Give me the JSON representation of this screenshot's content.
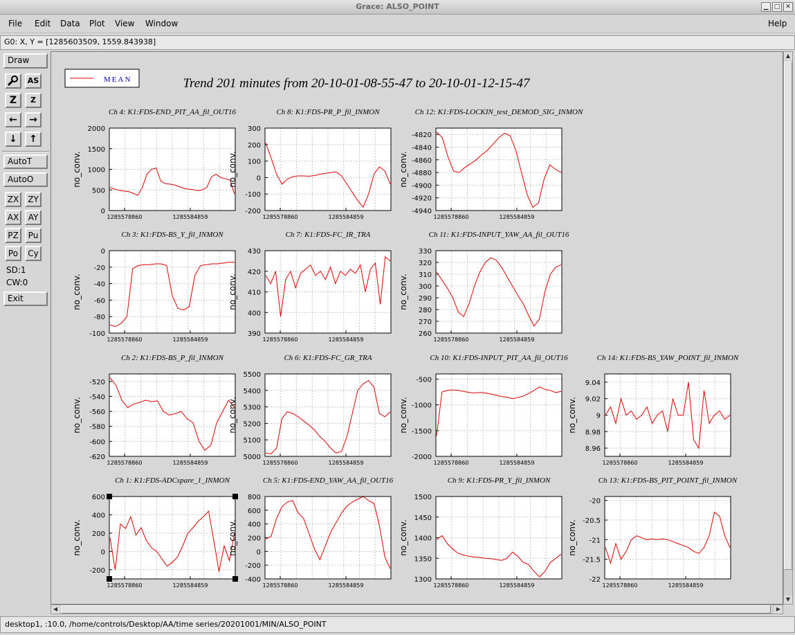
{
  "window": {
    "title": "Grace: ALSO_POINT",
    "controls": [
      "minimize",
      "maximize",
      "close"
    ]
  },
  "menu": {
    "items": [
      "File",
      "Edit",
      "Data",
      "Plot",
      "View",
      "Window"
    ],
    "help": "Help"
  },
  "locator": {
    "text": "G0: X, Y = [1285603509, 1559.843938]"
  },
  "tools": {
    "draw": "Draw",
    "autot": "AutoT",
    "autoo": "AutoO",
    "zx": "ZX",
    "zy": "ZY",
    "ax": "AX",
    "ay": "AY",
    "pz": "PZ",
    "pu": "Pu",
    "po": "Po",
    "cy": "Cy",
    "sd": "SD:1",
    "cw": "CW:0",
    "exit": "Exit",
    "icons": {
      "zoom": "zoom-icon",
      "autoscale": "autoscale-icon",
      "zoom_in": "zoom-in-icon",
      "zoom_out": "zoom-out-icon",
      "left": "arrow-left-icon",
      "right": "arrow-right-icon",
      "down": "arrow-down-icon",
      "up": "arrow-up-icon"
    }
  },
  "status": {
    "text": "desktop1, :10.0, /home/controls/Desktop/AA/time series/20201001/MIN/ALSO_POINT"
  },
  "colors": {
    "line": "#dd0000",
    "legend_text": "#0000aa",
    "grid": "#c8c8c8"
  },
  "chart_data": {
    "type": "line",
    "title": "Trend 201 minutes from 20-10-01-08-55-47 to 20-10-01-12-15-47",
    "legend": {
      "label": "MEAN",
      "placement": "top-left"
    },
    "ylabel": "no_conv.",
    "xticklabels": [
      "1285578860",
      "1285584859"
    ],
    "grid": true,
    "panels": [
      {
        "title": "Ch 4: K1:FDS-END_PIT_AA_fil_OUT16",
        "ylim": [
          0,
          2000
        ],
        "yticks": [
          0,
          500,
          1000,
          1500,
          2000
        ],
        "values": [
          560,
          520,
          490,
          470,
          460,
          420,
          370,
          560,
          880,
          1000,
          1030,
          720,
          650,
          640,
          620,
          580,
          540,
          520,
          510,
          480,
          500,
          560,
          820,
          880,
          800,
          770,
          740,
          400
        ]
      },
      {
        "title": "Ch 8: K1:FDS-PR_P_fil_INMON",
        "ylim": [
          -200,
          300
        ],
        "yticks": [
          -200,
          -100,
          0,
          100,
          200,
          300
        ],
        "values": [
          210,
          120,
          20,
          -40,
          -10,
          5,
          10,
          10,
          8,
          12,
          20,
          25,
          30,
          35,
          10,
          -40,
          -90,
          -140,
          -180,
          -100,
          20,
          65,
          40,
          -40
        ]
      },
      {
        "title": "Ch 12: K1:FDS-LOCKIN_test_DEMOD_SIG_INMON",
        "ylim": [
          -4940,
          -4810
        ],
        "yticks": [
          -4940,
          -4920,
          -4900,
          -4880,
          -4860,
          -4840,
          -4820
        ],
        "values": [
          -4816,
          -4825,
          -4855,
          -4878,
          -4880,
          -4872,
          -4866,
          -4860,
          -4852,
          -4845,
          -4835,
          -4825,
          -4818,
          -4822,
          -4845,
          -4880,
          -4915,
          -4935,
          -4928,
          -4890,
          -4868,
          -4875,
          -4880
        ]
      },
      {
        "title": "Ch 3: K1:FDS-BS_Y_fil_INMON",
        "ylim": [
          -100,
          0
        ],
        "yticks": [
          -100,
          -80,
          -60,
          -40,
          -20,
          0
        ],
        "values": [
          -90,
          -92,
          -88,
          -80,
          -22,
          -18,
          -17,
          -17,
          -16,
          -16,
          -18,
          -55,
          -70,
          -72,
          -68,
          -30,
          -18,
          -17,
          -16,
          -16,
          -15,
          -14,
          -14
        ]
      },
      {
        "title": "Ch 7: K1:FDS-FC_IR_TRA",
        "ylim": [
          390,
          430
        ],
        "yticks": [
          390,
          400,
          410,
          420,
          430
        ],
        "values": [
          418,
          414,
          420,
          398,
          416,
          420,
          412,
          419,
          421,
          423,
          418,
          420,
          416,
          422,
          414,
          420,
          418,
          421,
          419,
          423,
          410,
          421,
          424,
          404,
          427,
          425
        ]
      },
      {
        "title": "Ch 11: K1:FDS-INPUT_YAW_AA_fil_OUT16",
        "ylim": [
          260,
          330
        ],
        "yticks": [
          260,
          270,
          280,
          290,
          300,
          310,
          320,
          330
        ],
        "values": [
          312,
          305,
          298,
          290,
          278,
          274,
          285,
          300,
          312,
          320,
          324,
          322,
          316,
          308,
          300,
          292,
          285,
          275,
          266,
          272,
          295,
          310,
          316,
          318
        ]
      },
      {
        "title": "Ch 2: K1:FDS-BS_P_fil_INMON",
        "ylim": [
          -620,
          -510
        ],
        "yticks": [
          -620,
          -600,
          -580,
          -560,
          -540,
          -520
        ],
        "values": [
          -515,
          -525,
          -545,
          -555,
          -550,
          -548,
          -545,
          -547,
          -546,
          -560,
          -565,
          -563,
          -560,
          -570,
          -575,
          -600,
          -612,
          -605,
          -575,
          -560,
          -545,
          -555
        ]
      },
      {
        "title": "Ch 6: K1:FDS-FC_GR_TRA",
        "ylim": [
          5000,
          5500
        ],
        "yticks": [
          5000,
          5100,
          5200,
          5300,
          5400,
          5500
        ],
        "values": [
          5020,
          5015,
          5050,
          5230,
          5270,
          5260,
          5240,
          5215,
          5190,
          5160,
          5120,
          5090,
          5050,
          5020,
          5030,
          5120,
          5260,
          5400,
          5440,
          5460,
          5420,
          5260,
          5240,
          5270
        ]
      },
      {
        "title": "Ch 10: K1:FDS-INPUT_PIT_AA_fil_OUT16",
        "ylim": [
          -2000,
          -400
        ],
        "yticks": [
          -2000,
          -1500,
          -1000,
          -500
        ],
        "values": [
          -1600,
          -750,
          -720,
          -710,
          -720,
          -740,
          -760,
          -770,
          -760,
          -770,
          -790,
          -810,
          -840,
          -850,
          -880,
          -860,
          -830,
          -780,
          -720,
          -650,
          -700,
          -720,
          -760,
          -740
        ]
      },
      {
        "title": "Ch 14: K1:FDS-BS_YAW_POINT_fil_INMON",
        "ylim": [
          8.95,
          9.05
        ],
        "yticks": [
          8.96,
          8.98,
          9,
          9.02,
          9.04
        ],
        "values": [
          9.0,
          9.01,
          8.99,
          9.02,
          9.0,
          9.005,
          8.995,
          9.0,
          9.01,
          8.99,
          9.0,
          9.005,
          8.98,
          9.02,
          9.0,
          9.0,
          9.04,
          8.97,
          8.96,
          9.03,
          8.99,
          9.0,
          9.005,
          8.995,
          9.0
        ]
      },
      {
        "title": "Ch 1: K1:FDS-ADCspare_1_INMON",
        "ylim": [
          -300,
          600
        ],
        "yticks": [
          -200,
          0,
          200,
          400,
          600
        ],
        "values": [
          150,
          -200,
          300,
          250,
          380,
          180,
          260,
          120,
          40,
          0,
          -80,
          -160,
          -120,
          -60,
          60,
          200,
          260,
          330,
          380,
          440,
          120,
          -220,
          60,
          -100,
          200
        ]
      },
      {
        "title": "Ch 5: K1:FDS-END_YAW_AA_fil_OUT16",
        "ylim": [
          -400,
          800
        ],
        "yticks": [
          -400,
          -200,
          0,
          200,
          400,
          600,
          800
        ],
        "values": [
          180,
          220,
          480,
          650,
          720,
          740,
          560,
          480,
          260,
          40,
          -120,
          80,
          280,
          420,
          560,
          660,
          720,
          760,
          800,
          740,
          700,
          380,
          -80,
          -250
        ]
      },
      {
        "title": "Ch 9: K1:FDS-PR_Y_fil_INMON",
        "ylim": [
          1300,
          1500
        ],
        "yticks": [
          1300,
          1350,
          1400,
          1450,
          1500
        ],
        "values": [
          1395,
          1405,
          1385,
          1372,
          1362,
          1358,
          1355,
          1353,
          1352,
          1350,
          1349,
          1347,
          1345,
          1350,
          1365,
          1355,
          1340,
          1335,
          1318,
          1305,
          1318,
          1340,
          1350,
          1360
        ]
      },
      {
        "title": "Ch 13: K1:FDS-BS_PIT_POINT_fil_INMON",
        "ylim": [
          -22,
          -19.9
        ],
        "yticks": [
          -22,
          -21.5,
          -21,
          -20.5,
          -20
        ],
        "values": [
          -21.2,
          -21.6,
          -21.1,
          -21.5,
          -21.3,
          -21.0,
          -20.9,
          -20.95,
          -21.0,
          -20.98,
          -21.0,
          -20.98,
          -21.0,
          -21.05,
          -21.1,
          -21.15,
          -21.2,
          -21.3,
          -21.35,
          -21.2,
          -20.9,
          -20.3,
          -20.4,
          -20.9,
          -21.2
        ]
      }
    ]
  }
}
